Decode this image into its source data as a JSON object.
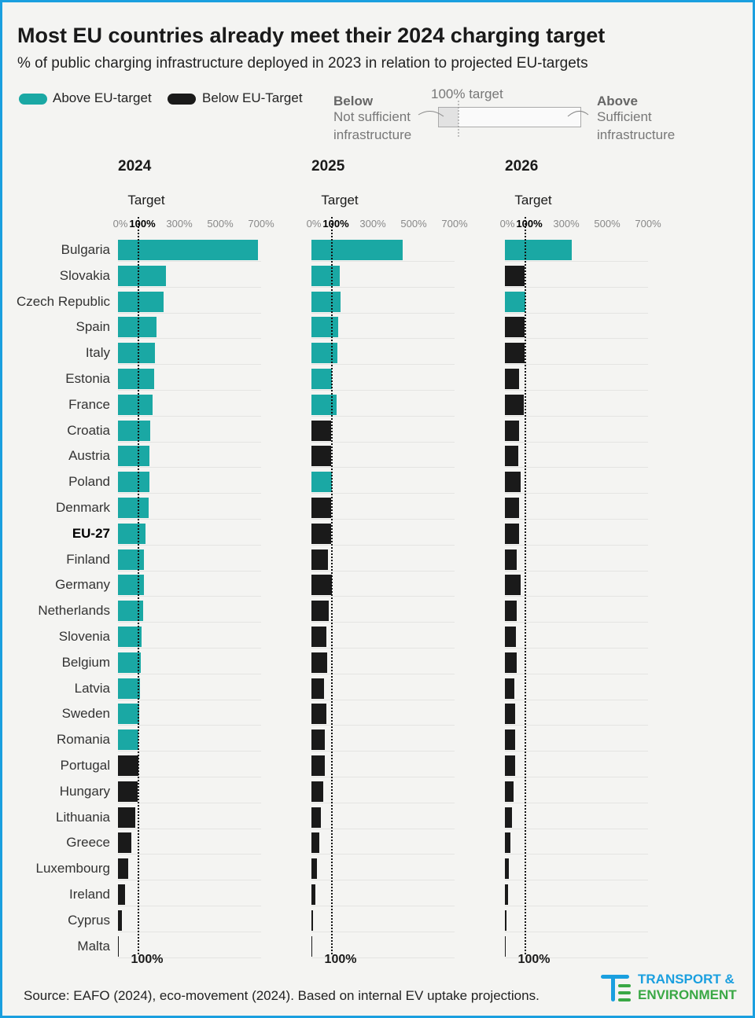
{
  "title": "Most EU countries already meet their 2024 charging target",
  "subtitle": "% of public charging infrastructure deployed in 2023 in relation to projected EU-targets",
  "legend": [
    {
      "label": "Above EU-target",
      "color": "#1aa8a4"
    },
    {
      "label": "Below EU-Target",
      "color": "#1a1a1a"
    }
  ],
  "explainer": {
    "target_label": "100% target",
    "below_title": "Below",
    "below_line1": "Not sufficient",
    "below_line2": "infrastructure",
    "above_title": "Above",
    "above_line1": "Sufficient",
    "above_line2": "infrastructure"
  },
  "source": "Source: EAFO (2024), eco-movement (2024). Based on internal EV uptake projections.",
  "logo": {
    "line1": "TRANSPORT &",
    "line2": "ENVIRONMENT",
    "color1": "#1a9fdf",
    "color2": "#3aa845"
  },
  "chart_data": {
    "type": "bar",
    "orientation": "horizontal",
    "target": 100,
    "xlim": [
      0,
      700
    ],
    "tick_labels": [
      "0%",
      "100%",
      "300%",
      "500%",
      "700%"
    ],
    "target_label": "Target",
    "bottom_label": "100%",
    "colors": {
      "above": "#1aa8a4",
      "below": "#1a1a1a"
    },
    "categories": [
      "Bulgaria",
      "Slovakia",
      "Czech Republic",
      "Spain",
      "Italy",
      "Estonia",
      "France",
      "Croatia",
      "Austria",
      "Poland",
      "Denmark",
      "EU-27",
      "Finland",
      "Germany",
      "Netherlands",
      "Slovenia",
      "Belgium",
      "Latvia",
      "Sweden",
      "Romania",
      "Portugal",
      "Hungary",
      "Lithuania",
      "Greece",
      "Luxembourg",
      "Ireland",
      "Cyprus",
      "Malta"
    ],
    "bold_category": "EU-27",
    "series": [
      {
        "name": "2024",
        "values": [
          685,
          235,
          223,
          188,
          181,
          177,
          169,
          158,
          154,
          154,
          150,
          135,
          127,
          127,
          123,
          115,
          112,
          108,
          104,
          101,
          99,
          96,
          85,
          65,
          50,
          35,
          19,
          3
        ]
      },
      {
        "name": "2025",
        "values": [
          446,
          138,
          142,
          131,
          127,
          101,
          123,
          96,
          96,
          101,
          96,
          96,
          81,
          99,
          85,
          73,
          77,
          62,
          73,
          65,
          65,
          58,
          46,
          38,
          27,
          19,
          8,
          2
        ]
      },
      {
        "name": "2026",
        "values": [
          327,
          96,
          101,
          96,
          96,
          69,
          92,
          69,
          65,
          77,
          69,
          69,
          58,
          77,
          58,
          54,
          58,
          46,
          50,
          50,
          50,
          42,
          35,
          27,
          19,
          15,
          8,
          3
        ]
      }
    ]
  }
}
